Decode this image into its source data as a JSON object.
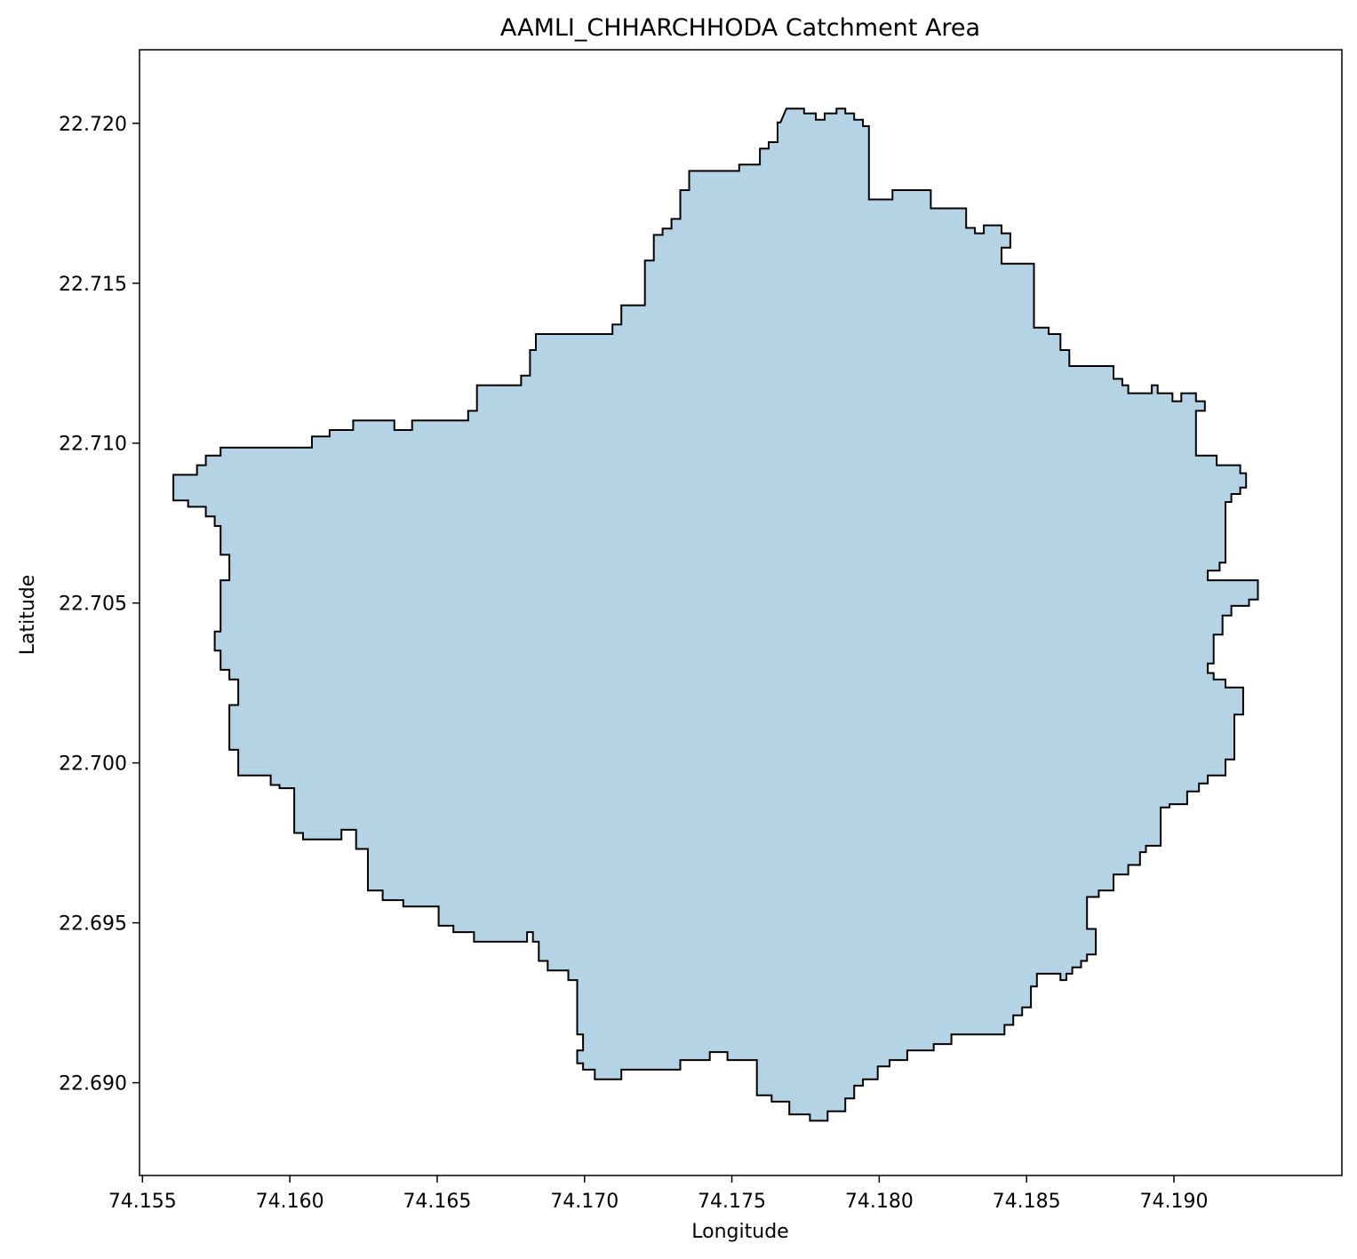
{
  "chart_data": {
    "type": "map",
    "title": "AAMLI_CHHARCHHODA Catchment Area",
    "xlabel": "Longitude",
    "ylabel": "Latitude",
    "xlim": [
      74.1549,
      74.1957
    ],
    "ylim": [
      22.6871,
      22.7223
    ],
    "xticks": [
      {
        "value": 74.155,
        "label": "74.155"
      },
      {
        "value": 74.16,
        "label": "74.160"
      },
      {
        "value": 74.165,
        "label": "74.165"
      },
      {
        "value": 74.17,
        "label": "74.170"
      },
      {
        "value": 74.175,
        "label": "74.175"
      },
      {
        "value": 74.18,
        "label": "74.180"
      },
      {
        "value": 74.185,
        "label": "74.185"
      },
      {
        "value": 74.19,
        "label": "74.190"
      }
    ],
    "yticks": [
      {
        "value": 22.69,
        "label": "22.690"
      },
      {
        "value": 22.695,
        "label": "22.695"
      },
      {
        "value": 22.7,
        "label": "22.700"
      },
      {
        "value": 22.705,
        "label": "22.705"
      },
      {
        "value": 22.71,
        "label": "22.710"
      },
      {
        "value": 22.715,
        "label": "22.715"
      },
      {
        "value": 22.72,
        "label": "22.720"
      }
    ],
    "grid": false,
    "fill_color": "#b4d4e6",
    "edge_color": "#000000",
    "polygon": [
      [
        74.17665,
        22.72003
      ],
      [
        74.17685,
        22.72046
      ],
      [
        74.17745,
        22.72046
      ],
      [
        74.17745,
        22.72031
      ],
      [
        74.17785,
        22.72031
      ],
      [
        74.17785,
        22.72011
      ],
      [
        74.17815,
        22.72011
      ],
      [
        74.17815,
        22.72031
      ],
      [
        74.17855,
        22.72031
      ],
      [
        74.17855,
        22.72046
      ],
      [
        74.17885,
        22.72046
      ],
      [
        74.17885,
        22.72031
      ],
      [
        74.17915,
        22.72031
      ],
      [
        74.17915,
        22.72011
      ],
      [
        74.17945,
        22.72011
      ],
      [
        74.17945,
        22.71991
      ],
      [
        74.17965,
        22.71991
      ],
      [
        74.17965,
        22.71762
      ],
      [
        74.18045,
        22.71762
      ],
      [
        74.18045,
        22.71791
      ],
      [
        74.18175,
        22.71791
      ],
      [
        74.18175,
        22.71734
      ],
      [
        74.18295,
        22.71734
      ],
      [
        74.18295,
        22.71673
      ],
      [
        74.18325,
        22.71673
      ],
      [
        74.18325,
        22.71656
      ],
      [
        74.18355,
        22.71656
      ],
      [
        74.18355,
        22.71681
      ],
      [
        74.18415,
        22.71681
      ],
      [
        74.18415,
        22.71656
      ],
      [
        74.18445,
        22.71656
      ],
      [
        74.18445,
        22.71611
      ],
      [
        74.18415,
        22.71611
      ],
      [
        74.18415,
        22.71561
      ],
      [
        74.18525,
        22.71561
      ],
      [
        74.18525,
        22.71361
      ],
      [
        74.18575,
        22.71361
      ],
      [
        74.18575,
        22.71341
      ],
      [
        74.18615,
        22.71341
      ],
      [
        74.18615,
        22.71291
      ],
      [
        74.18645,
        22.71291
      ],
      [
        74.18645,
        22.71241
      ],
      [
        74.18795,
        22.71241
      ],
      [
        74.18795,
        22.71201
      ],
      [
        74.18825,
        22.71201
      ],
      [
        74.18825,
        22.71181
      ],
      [
        74.18845,
        22.71181
      ],
      [
        74.18845,
        22.71156
      ],
      [
        74.18925,
        22.71156
      ],
      [
        74.18925,
        22.71181
      ],
      [
        74.18945,
        22.71181
      ],
      [
        74.18945,
        22.71156
      ],
      [
        74.18995,
        22.71156
      ],
      [
        74.18995,
        22.71131
      ],
      [
        74.19025,
        22.71131
      ],
      [
        74.19025,
        22.71156
      ],
      [
        74.19075,
        22.71156
      ],
      [
        74.19075,
        22.71131
      ],
      [
        74.19105,
        22.71131
      ],
      [
        74.19105,
        22.71101
      ],
      [
        74.19075,
        22.71101
      ],
      [
        74.19075,
        22.70961
      ],
      [
        74.19145,
        22.70961
      ],
      [
        74.19145,
        22.70931
      ],
      [
        74.19225,
        22.70931
      ],
      [
        74.19225,
        22.70906
      ],
      [
        74.19245,
        22.70906
      ],
      [
        74.19245,
        22.70861
      ],
      [
        74.19225,
        22.70861
      ],
      [
        74.19225,
        22.70841
      ],
      [
        74.19195,
        22.70841
      ],
      [
        74.19195,
        22.70816
      ],
      [
        74.19175,
        22.70816
      ],
      [
        74.19175,
        22.70626
      ],
      [
        74.19155,
        22.70626
      ],
      [
        74.19155,
        22.70601
      ],
      [
        74.19115,
        22.70601
      ],
      [
        74.19115,
        22.70571
      ],
      [
        74.19285,
        22.70571
      ],
      [
        74.19285,
        22.70511
      ],
      [
        74.19255,
        22.70511
      ],
      [
        74.19255,
        22.70491
      ],
      [
        74.19195,
        22.70491
      ],
      [
        74.19195,
        22.70461
      ],
      [
        74.19165,
        22.70461
      ],
      [
        74.19165,
        22.70401
      ],
      [
        74.19135,
        22.70401
      ],
      [
        74.19135,
        22.70311
      ],
      [
        74.19115,
        22.70311
      ],
      [
        74.19115,
        22.70281
      ],
      [
        74.19135,
        22.70281
      ],
      [
        74.19135,
        22.70261
      ],
      [
        74.19175,
        22.70261
      ],
      [
        74.19175,
        22.70236
      ],
      [
        74.19235,
        22.70236
      ],
      [
        74.19235,
        22.70151
      ],
      [
        74.19205,
        22.70151
      ],
      [
        74.19205,
        22.70011
      ],
      [
        74.19175,
        22.70011
      ],
      [
        74.19175,
        22.69961
      ],
      [
        74.19115,
        22.69961
      ],
      [
        74.19115,
        22.69936
      ],
      [
        74.19085,
        22.69936
      ],
      [
        74.19085,
        22.69911
      ],
      [
        74.19045,
        22.69911
      ],
      [
        74.19045,
        22.69871
      ],
      [
        74.18985,
        22.69871
      ],
      [
        74.18985,
        22.69861
      ],
      [
        74.18955,
        22.69861
      ],
      [
        74.18955,
        22.69741
      ],
      [
        74.18905,
        22.69741
      ],
      [
        74.18905,
        22.69721
      ],
      [
        74.18885,
        22.69721
      ],
      [
        74.18885,
        22.69681
      ],
      [
        74.18845,
        22.69681
      ],
      [
        74.18845,
        22.69651
      ],
      [
        74.18795,
        22.69651
      ],
      [
        74.18795,
        22.69601
      ],
      [
        74.18745,
        22.69601
      ],
      [
        74.18745,
        22.69581
      ],
      [
        74.18705,
        22.69581
      ],
      [
        74.18705,
        22.69481
      ],
      [
        74.18735,
        22.69481
      ],
      [
        74.18735,
        22.69401
      ],
      [
        74.18705,
        22.69401
      ],
      [
        74.18705,
        22.69381
      ],
      [
        74.18685,
        22.69381
      ],
      [
        74.18685,
        22.69361
      ],
      [
        74.18655,
        22.69361
      ],
      [
        74.18655,
        22.69341
      ],
      [
        74.18635,
        22.69341
      ],
      [
        74.18635,
        22.69321
      ],
      [
        74.18615,
        22.69321
      ],
      [
        74.18615,
        22.69341
      ],
      [
        74.18535,
        22.69341
      ],
      [
        74.18535,
        22.69301
      ],
      [
        74.18515,
        22.69301
      ],
      [
        74.18515,
        22.69236
      ],
      [
        74.18485,
        22.69236
      ],
      [
        74.18485,
        22.69211
      ],
      [
        74.18455,
        22.69211
      ],
      [
        74.18455,
        22.69181
      ],
      [
        74.18425,
        22.69181
      ],
      [
        74.18425,
        22.69151
      ],
      [
        74.18245,
        22.69151
      ],
      [
        74.18245,
        22.69121
      ],
      [
        74.18185,
        22.69121
      ],
      [
        74.18185,
        22.69101
      ],
      [
        74.18095,
        22.69101
      ],
      [
        74.18095,
        22.69071
      ],
      [
        74.18035,
        22.69071
      ],
      [
        74.18035,
        22.69051
      ],
      [
        74.17995,
        22.69051
      ],
      [
        74.17995,
        22.69011
      ],
      [
        74.17945,
        22.69011
      ],
      [
        74.17945,
        22.68991
      ],
      [
        74.17915,
        22.68991
      ],
      [
        74.17915,
        22.68951
      ],
      [
        74.17885,
        22.68951
      ],
      [
        74.17885,
        22.68911
      ],
      [
        74.17825,
        22.68911
      ],
      [
        74.17825,
        22.68881
      ],
      [
        74.17765,
        22.68881
      ],
      [
        74.17765,
        22.68901
      ],
      [
        74.17695,
        22.68901
      ],
      [
        74.17695,
        22.68941
      ],
      [
        74.17635,
        22.68941
      ],
      [
        74.17635,
        22.68961
      ],
      [
        74.17585,
        22.68961
      ],
      [
        74.17585,
        22.69071
      ],
      [
        74.17485,
        22.69071
      ],
      [
        74.17485,
        22.69096
      ],
      [
        74.17425,
        22.69096
      ],
      [
        74.17425,
        22.69071
      ],
      [
        74.17325,
        22.69071
      ],
      [
        74.17325,
        22.69041
      ],
      [
        74.17125,
        22.69041
      ],
      [
        74.17125,
        22.69011
      ],
      [
        74.17035,
        22.69011
      ],
      [
        74.17035,
        22.69041
      ],
      [
        74.16995,
        22.69041
      ],
      [
        74.16995,
        22.69061
      ],
      [
        74.16975,
        22.69061
      ],
      [
        74.16975,
        22.69101
      ],
      [
        74.16995,
        22.69101
      ],
      [
        74.16995,
        22.69151
      ],
      [
        74.16975,
        22.69151
      ],
      [
        74.16975,
        22.69321
      ],
      [
        74.16945,
        22.69321
      ],
      [
        74.16945,
        22.69351
      ],
      [
        74.16875,
        22.69351
      ],
      [
        74.16875,
        22.69381
      ],
      [
        74.16845,
        22.69381
      ],
      [
        74.16845,
        22.69441
      ],
      [
        74.16825,
        22.69441
      ],
      [
        74.16825,
        22.69471
      ],
      [
        74.16805,
        22.69471
      ],
      [
        74.16805,
        22.69441
      ],
      [
        74.16625,
        22.69441
      ],
      [
        74.16625,
        22.69471
      ],
      [
        74.16555,
        22.69471
      ],
      [
        74.16555,
        22.69491
      ],
      [
        74.16505,
        22.69491
      ],
      [
        74.16505,
        22.69551
      ],
      [
        74.16385,
        22.69551
      ],
      [
        74.16385,
        22.69571
      ],
      [
        74.16315,
        22.69571
      ],
      [
        74.16315,
        22.69601
      ],
      [
        74.16265,
        22.69601
      ],
      [
        74.16265,
        22.69731
      ],
      [
        74.16225,
        22.69731
      ],
      [
        74.16225,
        22.69791
      ],
      [
        74.16175,
        22.69791
      ],
      [
        74.16175,
        22.69761
      ],
      [
        74.16045,
        22.69761
      ],
      [
        74.16045,
        22.69781
      ],
      [
        74.16015,
        22.69781
      ],
      [
        74.16015,
        22.69921
      ],
      [
        74.15965,
        22.69921
      ],
      [
        74.15965,
        22.69931
      ],
      [
        74.15935,
        22.69931
      ],
      [
        74.15935,
        22.69961
      ],
      [
        74.15825,
        22.69961
      ],
      [
        74.15825,
        22.70041
      ],
      [
        74.15795,
        22.70041
      ],
      [
        74.15795,
        22.70181
      ],
      [
        74.15825,
        22.70181
      ],
      [
        74.15825,
        22.70261
      ],
      [
        74.15795,
        22.70261
      ],
      [
        74.15795,
        22.70291
      ],
      [
        74.15765,
        22.70291
      ],
      [
        74.15765,
        22.70351
      ],
      [
        74.15745,
        22.70351
      ],
      [
        74.15745,
        22.70411
      ],
      [
        74.15765,
        22.70411
      ],
      [
        74.15765,
        22.70571
      ],
      [
        74.15795,
        22.70571
      ],
      [
        74.15795,
        22.70651
      ],
      [
        74.15765,
        22.70651
      ],
      [
        74.15765,
        22.70741
      ],
      [
        74.15745,
        22.70741
      ],
      [
        74.15745,
        22.70771
      ],
      [
        74.15715,
        22.70771
      ],
      [
        74.15715,
        22.70801
      ],
      [
        74.15655,
        22.70801
      ],
      [
        74.15655,
        22.70821
      ],
      [
        74.15605,
        22.70821
      ],
      [
        74.15605,
        22.70901
      ],
      [
        74.15685,
        22.70901
      ],
      [
        74.15685,
        22.70931
      ],
      [
        74.15715,
        22.70931
      ],
      [
        74.15715,
        22.70961
      ],
      [
        74.15765,
        22.70961
      ],
      [
        74.15765,
        22.70986
      ],
      [
        74.16075,
        22.70986
      ],
      [
        74.16075,
        22.71021
      ],
      [
        74.16135,
        22.71021
      ],
      [
        74.16135,
        22.71041
      ],
      [
        74.16215,
        22.71041
      ],
      [
        74.16215,
        22.71071
      ],
      [
        74.16355,
        22.71071
      ],
      [
        74.16355,
        22.71041
      ],
      [
        74.16415,
        22.71041
      ],
      [
        74.16415,
        22.71071
      ],
      [
        74.16605,
        22.71071
      ],
      [
        74.16605,
        22.71101
      ],
      [
        74.16635,
        22.71101
      ],
      [
        74.16635,
        22.71181
      ],
      [
        74.16785,
        22.71181
      ],
      [
        74.16785,
        22.71211
      ],
      [
        74.16815,
        22.71211
      ],
      [
        74.16815,
        22.71291
      ],
      [
        74.16835,
        22.71291
      ],
      [
        74.16835,
        22.71341
      ],
      [
        74.17095,
        22.71341
      ],
      [
        74.17095,
        22.71371
      ],
      [
        74.17125,
        22.71371
      ],
      [
        74.17125,
        22.71431
      ],
      [
        74.17205,
        22.71431
      ],
      [
        74.17205,
        22.71571
      ],
      [
        74.17235,
        22.71571
      ],
      [
        74.17235,
        22.71651
      ],
      [
        74.17265,
        22.71651
      ],
      [
        74.17265,
        22.71671
      ],
      [
        74.17295,
        22.71671
      ],
      [
        74.17295,
        22.71701
      ],
      [
        74.17325,
        22.71701
      ],
      [
        74.17325,
        22.71791
      ],
      [
        74.17355,
        22.71791
      ],
      [
        74.17355,
        22.71851
      ],
      [
        74.17525,
        22.71851
      ],
      [
        74.17525,
        22.71871
      ],
      [
        74.17595,
        22.71871
      ],
      [
        74.17595,
        22.71921
      ],
      [
        74.17625,
        22.71921
      ],
      [
        74.17625,
        22.71941
      ],
      [
        74.17655,
        22.71941
      ],
      [
        74.17655,
        22.72003
      ]
    ]
  }
}
